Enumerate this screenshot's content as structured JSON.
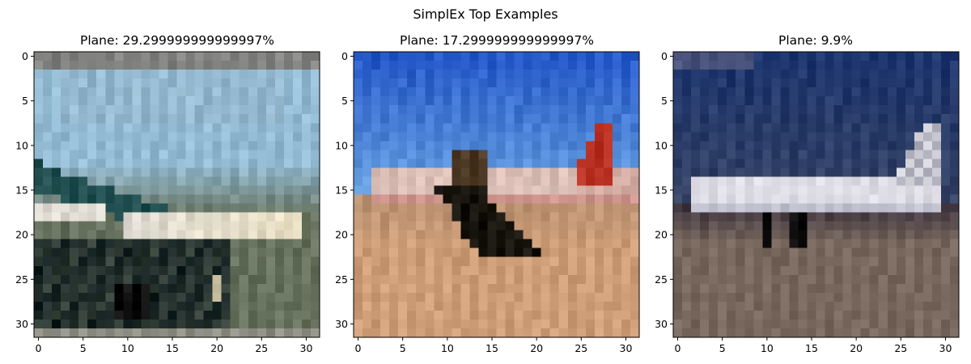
{
  "suptitle": "SimplEx Top Examples",
  "chart_data": [
    {
      "type": "image",
      "title": "Plane: 29.299999999999997%",
      "image_size": [
        32,
        32
      ],
      "xlim": [
        -0.5,
        31.5
      ],
      "ylim": [
        31.5,
        -0.5
      ],
      "xticks": [
        0,
        5,
        10,
        15,
        20,
        25,
        30
      ],
      "yticks": [
        0,
        5,
        10,
        15,
        20,
        25,
        30
      ],
      "grid": false,
      "scene": {
        "sky": "#9cc4dc",
        "top_band": "#8a8a88",
        "ground": "#6f7a66",
        "hull_light": "#e8e4dc",
        "hull_dark": "#1d2a2a",
        "accent": "#2f6a6c"
      }
    },
    {
      "type": "image",
      "title": "Plane: 17.299999999999997%",
      "image_size": [
        32,
        32
      ],
      "xlim": [
        -0.5,
        31.5
      ],
      "ylim": [
        31.5,
        -0.5
      ],
      "xticks": [
        0,
        5,
        10,
        15,
        20,
        25,
        30
      ],
      "yticks": [
        0,
        5,
        10,
        15,
        20,
        25,
        30
      ],
      "grid": false,
      "scene": {
        "sky_top": "#2c5fd0",
        "sky_bottom": "#6fa8e8",
        "ground": "#d4a57e",
        "fuselage": "#e6d0c8",
        "tail": "#c0392b",
        "shadow": "#1e1a14"
      }
    },
    {
      "type": "image",
      "title": "Plane: 9.9%",
      "image_size": [
        32,
        32
      ],
      "xlim": [
        -0.5,
        31.5
      ],
      "ylim": [
        31.5,
        -0.5
      ],
      "xticks": [
        0,
        5,
        10,
        15,
        20,
        25,
        30
      ],
      "yticks": [
        0,
        5,
        10,
        15,
        20,
        25,
        30
      ],
      "grid": false,
      "scene": {
        "sky_top": "#233b74",
        "sky_bottom": "#3c4a6c",
        "ground": "#7e6e63",
        "fuselage": "#e4e2ea",
        "tail": "#dcdce4",
        "wheels": "#151515"
      }
    }
  ]
}
